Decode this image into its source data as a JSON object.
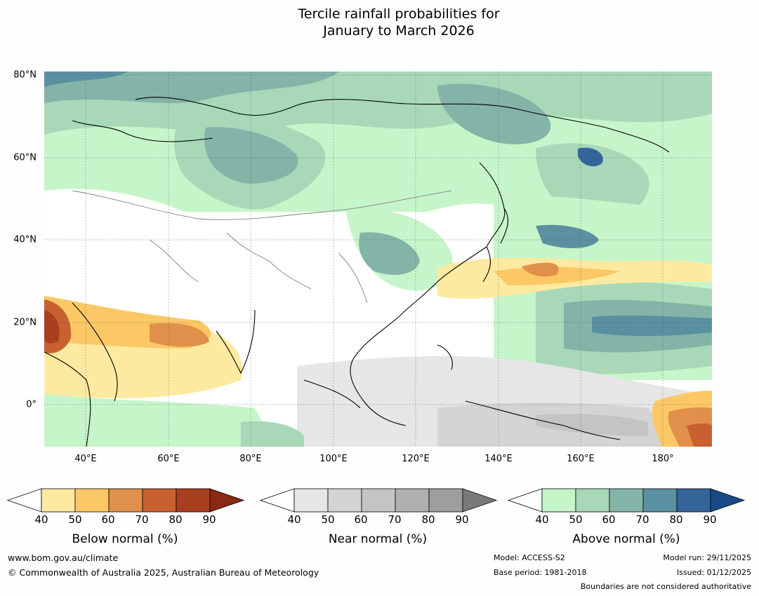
{
  "title": {
    "line1": "Tercile rainfall probabilities for",
    "line2": "January to March 2026"
  },
  "map": {
    "lat_labels": [
      "80°N",
      "60°N",
      "40°N",
      "20°N",
      "0°"
    ],
    "lon_labels": [
      "40°E",
      "60°E",
      "80°E",
      "100°E",
      "120°E",
      "140°E",
      "160°E",
      "180°"
    ],
    "extent": {
      "lon_min": 30,
      "lon_max": 191,
      "lat_min": -10,
      "lat_max": 80
    }
  },
  "legends": [
    {
      "name": "below",
      "title": "Below normal (%)",
      "ticks": [
        "40",
        "50",
        "60",
        "70",
        "80",
        "90"
      ],
      "colors": [
        "#ffffff",
        "#fdeaa0",
        "#fcc866",
        "#e0904a",
        "#c86030",
        "#a84020",
        "#8a2a10"
      ]
    },
    {
      "name": "near",
      "title": "Near normal (%)",
      "ticks": [
        "40",
        "50",
        "60",
        "70",
        "80",
        "90"
      ],
      "colors": [
        "#ffffff",
        "#e6e6e6",
        "#d4d4d4",
        "#c4c4c4",
        "#b0b0b0",
        "#9e9e9e",
        "#7a7a7a"
      ]
    },
    {
      "name": "above",
      "title": "Above normal (%)",
      "ticks": [
        "40",
        "50",
        "60",
        "70",
        "80",
        "90"
      ],
      "colors": [
        "#ffffff",
        "#c6f5c9",
        "#a8d8b8",
        "#84b4a8",
        "#5a90a0",
        "#33659a",
        "#1a4a86"
      ]
    }
  ],
  "footer": {
    "website": "www.bom.gov.au/climate",
    "copyright": "© Commonwealth of Australia 2025, Australian Bureau of Meteorology",
    "model": "Model: ACCESS-S2",
    "base_period": "Base period: 1981-2018",
    "model_run": "Model run: 29/11/2025",
    "issued": "Issued: 01/12/2025",
    "disclaimer": "Boundaries are not considered authoritative"
  }
}
